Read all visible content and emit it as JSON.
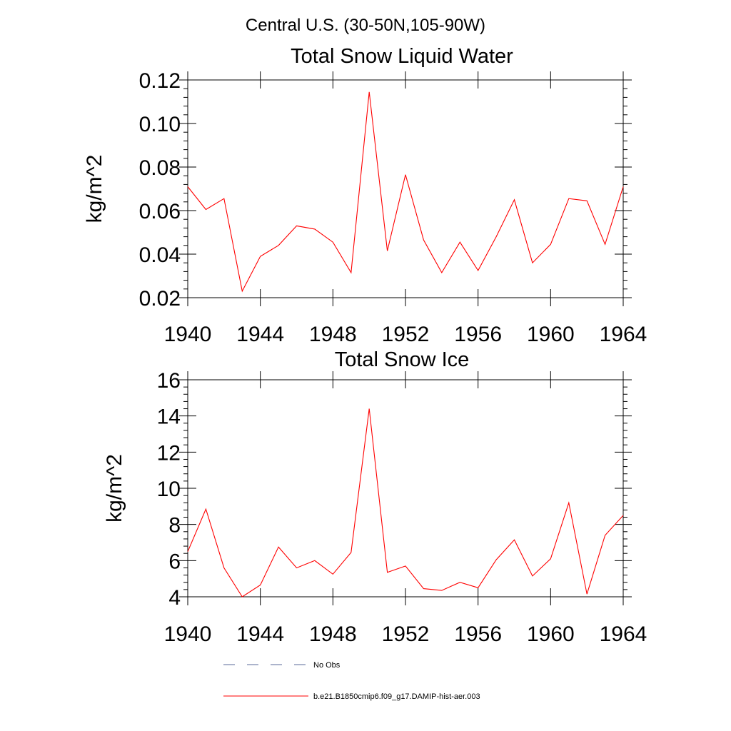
{
  "figure": {
    "suptitle": "Central U.S. (30-50N,105-90W)"
  },
  "chart_data": [
    {
      "type": "line",
      "title": "Total Snow Liquid Water",
      "xlabel": "",
      "ylabel": "kg/m^2",
      "xlim": [
        1940,
        1964
      ],
      "ylim": [
        0.02,
        0.12
      ],
      "x_ticks": [
        1940,
        1944,
        1948,
        1952,
        1956,
        1960,
        1964
      ],
      "x_tick_labels": [
        "1940",
        "1944",
        "1948",
        "1952",
        "1956",
        "1960",
        "1964"
      ],
      "y_ticks": [
        0.02,
        0.04,
        0.06,
        0.08,
        0.1,
        0.12
      ],
      "y_tick_labels": [
        "0.02",
        "0.04",
        "0.06",
        "0.08",
        "0.10",
        "0.12"
      ],
      "grid": false,
      "series": [
        {
          "name": "b.e21.B1850cmip6.f09_g17.DAMIP-hist-aer.003",
          "color": "#ff0000",
          "x": [
            1940,
            1941,
            1942,
            1943,
            1944,
            1945,
            1946,
            1947,
            1948,
            1949,
            1950,
            1951,
            1952,
            1953,
            1954,
            1955,
            1956,
            1957,
            1958,
            1959,
            1960,
            1961,
            1962,
            1963,
            1964
          ],
          "y": [
            0.071,
            0.0605,
            0.0655,
            0.023,
            0.039,
            0.044,
            0.053,
            0.0515,
            0.0455,
            0.0315,
            0.1145,
            0.0415,
            0.0765,
            0.0465,
            0.0315,
            0.0455,
            0.0325,
            0.048,
            0.065,
            0.036,
            0.0445,
            0.0655,
            0.0645,
            0.0445,
            0.071
          ]
        }
      ]
    },
    {
      "type": "line",
      "title": "Total Snow Ice",
      "xlabel": "",
      "ylabel": "kg/m^2",
      "xlim": [
        1940,
        1964
      ],
      "ylim": [
        4,
        16
      ],
      "x_ticks": [
        1940,
        1944,
        1948,
        1952,
        1956,
        1960,
        1964
      ],
      "x_tick_labels": [
        "1940",
        "1944",
        "1948",
        "1952",
        "1956",
        "1960",
        "1964"
      ],
      "y_ticks": [
        4,
        6,
        8,
        10,
        12,
        14,
        16
      ],
      "y_tick_labels": [
        "4",
        "6",
        "8",
        "10",
        "12",
        "14",
        "16"
      ],
      "grid": false,
      "series": [
        {
          "name": "b.e21.B1850cmip6.f09_g17.DAMIP-hist-aer.003",
          "color": "#ff0000",
          "x": [
            1940,
            1941,
            1942,
            1943,
            1944,
            1945,
            1946,
            1947,
            1948,
            1949,
            1950,
            1951,
            1952,
            1953,
            1954,
            1955,
            1956,
            1957,
            1958,
            1959,
            1960,
            1961,
            1962,
            1963,
            1964
          ],
          "y": [
            6.5,
            8.85,
            5.6,
            4.0,
            4.65,
            6.75,
            5.6,
            6.0,
            5.25,
            6.45,
            14.4,
            5.35,
            5.7,
            4.45,
            4.35,
            4.8,
            4.5,
            6.05,
            7.15,
            5.15,
            6.1,
            9.2,
            4.15,
            7.4,
            8.5
          ]
        }
      ]
    }
  ],
  "legend": {
    "placement": "bottom",
    "items": [
      {
        "label": "No Obs",
        "style": "dashed",
        "color": "#5a6a9a"
      },
      {
        "label": "b.e21.B1850cmip6.f09_g17.DAMIP-hist-aer.003",
        "style": "solid",
        "color": "#ff0000"
      }
    ]
  }
}
